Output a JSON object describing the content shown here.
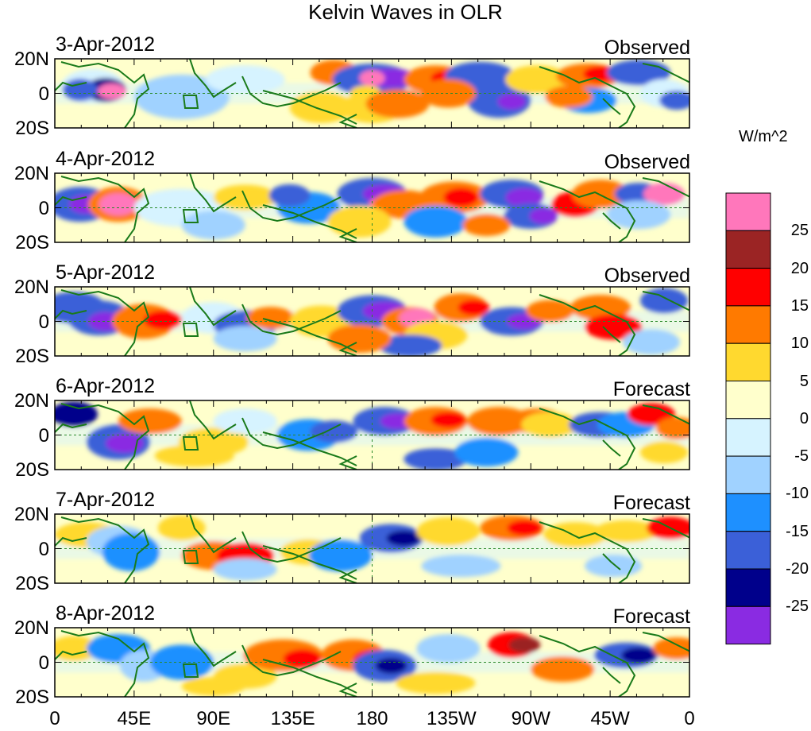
{
  "title": "Kelvin Waves in OLR",
  "panels": [
    {
      "date": "3-Apr-2012",
      "label": "Observed"
    },
    {
      "date": "4-Apr-2012",
      "label": "Observed"
    },
    {
      "date": "5-Apr-2012",
      "label": "Observed"
    },
    {
      "date": "6-Apr-2012",
      "label": "Forecast"
    },
    {
      "date": "7-Apr-2012",
      "label": "Forecast"
    },
    {
      "date": "8-Apr-2012",
      "label": "Forecast"
    }
  ],
  "lat_labels": [
    "20N",
    "0",
    "20S"
  ],
  "lon_labels": [
    "0",
    "45E",
    "90E",
    "135E",
    "180",
    "135W",
    "90W",
    "45W",
    "0"
  ],
  "colorbar": {
    "unit": "W/m^2",
    "ticks": [
      "25",
      "20",
      "15",
      "10",
      "5",
      "0",
      "-5",
      "-10",
      "-15",
      "-20",
      "-25"
    ],
    "colors": [
      "#ff77bb",
      "#9b2424",
      "#ff0000",
      "#ff7a00",
      "#ffd92f",
      "#ffffcc",
      "#d6f3ff",
      "#a0d2ff",
      "#1e90ff",
      "#3b60d8",
      "#00008b",
      "#8a2be2"
    ]
  },
  "colors": {
    "coast": "#1a7a1a",
    "equator": "#2a8a2a"
  }
}
